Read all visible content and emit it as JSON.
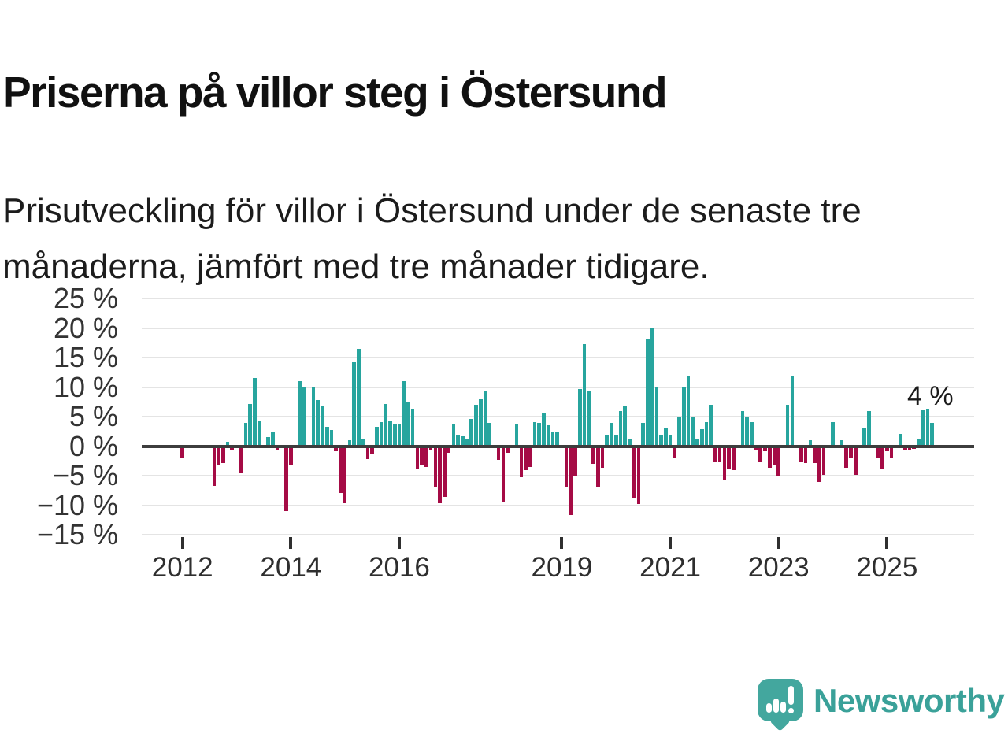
{
  "header": {
    "title": "Priserna på villor steg i Östersund",
    "subtitle_line_1": "Prisutveckling för villor i Östersund under de senaste tre",
    "subtitle_line_2": "månaderna, jämfört med tre månader tidigare."
  },
  "chart_data": {
    "type": "bar",
    "title": "Prisutveckling för villor i Östersund, tre månader jämfört med tre månader tidigare",
    "unit": "%",
    "ylabel": "",
    "xlabel": "",
    "ylim": [
      -15,
      25
    ],
    "grid": "horizontal",
    "legend": "none",
    "colors": {
      "positive": "#27a59e",
      "negative": "#a50b45",
      "zero_line": "#3d3d3d",
      "gridline": "#e4e4e4"
    },
    "y_ticks": [
      {
        "value": 25,
        "label": "25 %"
      },
      {
        "value": 20,
        "label": "20 %"
      },
      {
        "value": 15,
        "label": "15 %"
      },
      {
        "value": 10,
        "label": "10 %"
      },
      {
        "value": 5,
        "label": "5 %"
      },
      {
        "value": 0,
        "label": "0 %"
      },
      {
        "value": -5,
        "label": "−5 %"
      },
      {
        "value": -10,
        "label": "−10 %"
      },
      {
        "value": -15,
        "label": "−15 %"
      }
    ],
    "x_ticks": [
      {
        "label": "2012",
        "month_index": 0
      },
      {
        "label": "2014",
        "month_index": 24
      },
      {
        "label": "2016",
        "month_index": 48
      },
      {
        "label": "2019",
        "month_index": 84
      },
      {
        "label": "2021",
        "month_index": 108
      },
      {
        "label": "2023",
        "month_index": 132
      },
      {
        "label": "2025",
        "month_index": 156
      }
    ],
    "annotation": {
      "text": "4 %",
      "value": 4,
      "applies_to": "last-bar"
    },
    "series": [
      {
        "name": "Prisutveckling villor Östersund (%)",
        "start_month": "2012-01",
        "frequency": "monthly",
        "values": [
          -2.1,
          0,
          0,
          0,
          0,
          0,
          0,
          -6.7,
          -3.1,
          -2.9,
          0.8,
          -0.7,
          0,
          -4.6,
          3.9,
          7.2,
          11.5,
          4.3,
          0,
          1.5,
          2.3,
          -0.7,
          0,
          -11.0,
          -3.2,
          0,
          11.0,
          9.9,
          0,
          10.1,
          7.8,
          6.9,
          3.3,
          2.7,
          -0.9,
          -7.9,
          -9.7,
          1.0,
          14.2,
          16.5,
          1.3,
          -2.2,
          -1.3,
          3.3,
          4.1,
          7.1,
          4.2,
          3.8,
          3.8,
          11.0,
          7.5,
          6.3,
          -3.9,
          -3.2,
          -3.5,
          -0.6,
          -6.9,
          -9.7,
          -8.6,
          -1.1,
          3.7,
          1.9,
          1.7,
          1.3,
          4.6,
          7.0,
          8.0,
          9.3,
          3.9,
          0,
          -2.3,
          -9.5,
          -1.1,
          0,
          3.7,
          -5.2,
          -4.0,
          -3.5,
          4.1,
          4.0,
          5.5,
          3.6,
          2.3,
          2.4,
          0,
          -6.8,
          -11.7,
          -5.1,
          9.7,
          17.3,
          9.3,
          -3.0,
          -6.8,
          -3.7,
          1.9,
          4.0,
          1.9,
          6.0,
          6.9,
          1.1,
          -8.9,
          -9.8,
          4.0,
          18.1,
          19.9,
          10.0,
          2.0,
          3.0,
          2.0,
          -2.0,
          5.0,
          10.0,
          12.0,
          5.0,
          1.1,
          2.9,
          4.1,
          7.0,
          -2.7,
          -2.7,
          -5.8,
          -3.9,
          -4.0,
          0,
          6.0,
          5.0,
          4.1,
          -0.7,
          -2.7,
          -0.9,
          -3.6,
          -3.1,
          -5.1,
          0,
          7.0,
          12.0,
          0,
          -2.7,
          -2.8,
          1.0,
          -2.9,
          -6.0,
          -4.9,
          0,
          4.1,
          0,
          1.0,
          -3.6,
          -2.0,
          -4.9,
          0,
          3.0,
          6.0,
          0,
          -2.0,
          -3.9,
          -0.9,
          -2.0,
          0,
          2.1,
          -0.6,
          -0.6,
          -0.5,
          1.1,
          6.1,
          6.3,
          4.0
        ]
      }
    ]
  },
  "footer": {
    "logo_text": "Newsworthy",
    "logo_icon": "newsworthy-speech-bubble-chart-icon",
    "logo_color": "#3aa199",
    "logo_mark_color": "#43a79e"
  }
}
